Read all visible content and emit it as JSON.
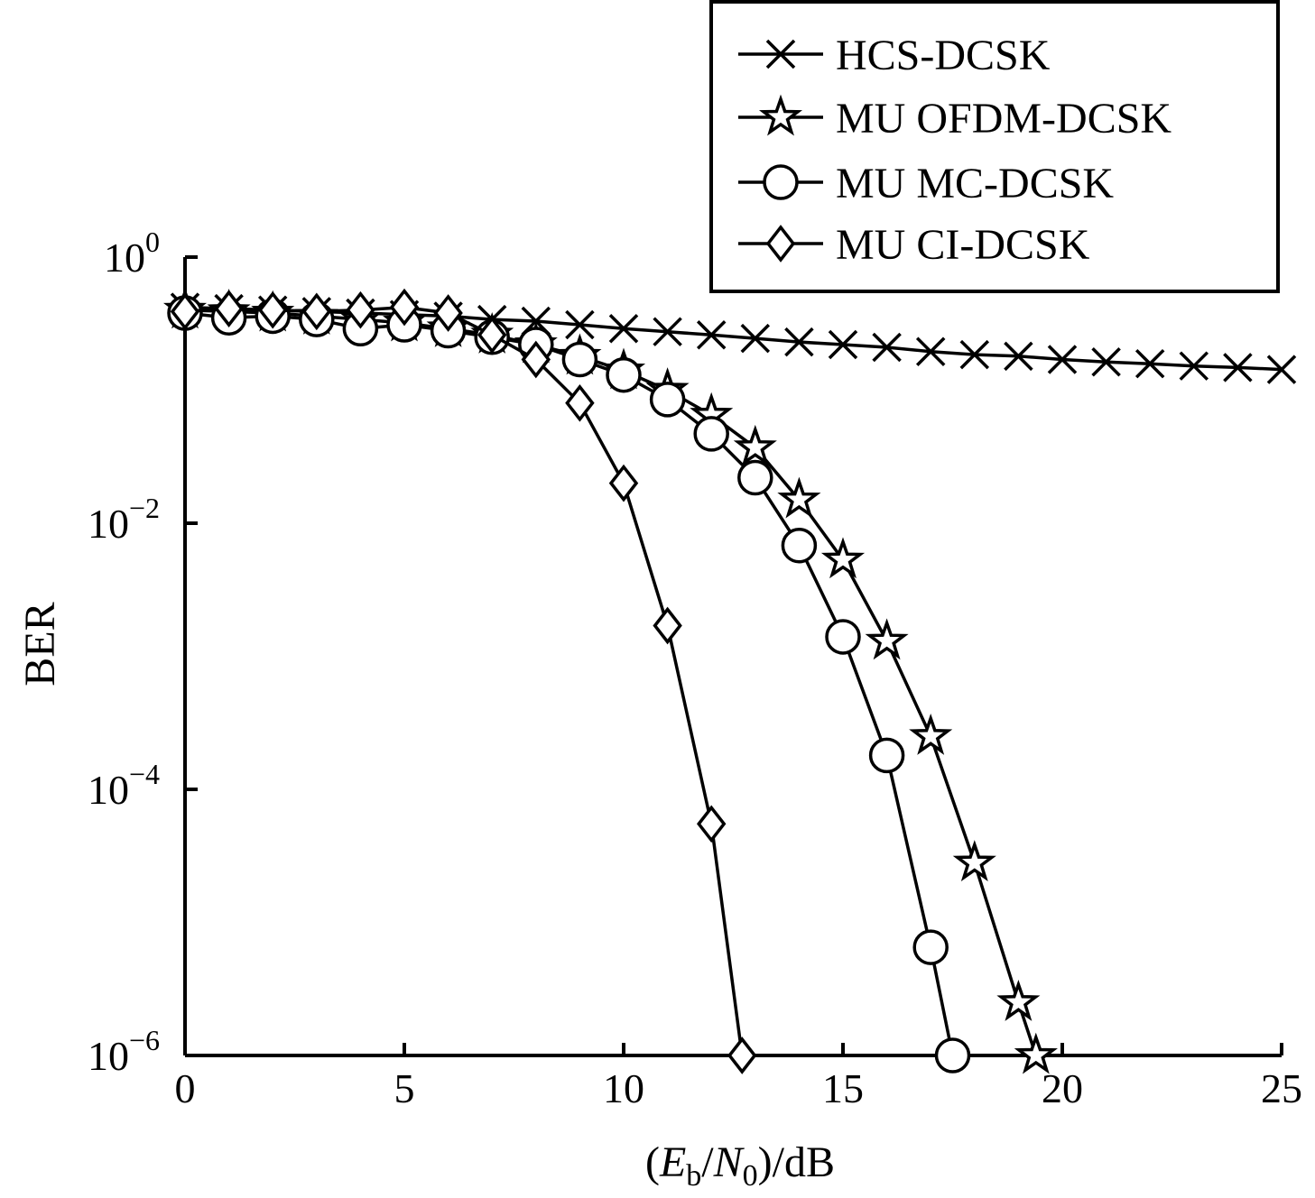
{
  "chart_data": {
    "type": "line",
    "title": "",
    "xlabel": "(Eb/N0)/dB",
    "xlabel_parts": {
      "open": "(",
      "e": "E",
      "e_sub": "b",
      "slash": "/",
      "n": "N",
      "n_sub": "0",
      "close": ")/dB"
    },
    "ylabel": "BER",
    "xlim": [
      0,
      25
    ],
    "ylim": [
      1e-06,
      1
    ],
    "yscale": "log",
    "grid": false,
    "legend_position": "top-right",
    "x_ticks": [
      {
        "value": 0,
        "label": "0"
      },
      {
        "value": 5,
        "label": "5"
      },
      {
        "value": 10,
        "label": "10"
      },
      {
        "value": 15,
        "label": "15"
      },
      {
        "value": 20,
        "label": "20"
      },
      {
        "value": 25,
        "label": "25"
      }
    ],
    "y_ticks": [
      {
        "value": 1,
        "base": "10",
        "exp": "0"
      },
      {
        "value": 0.01,
        "base": "10",
        "exp": "−2"
      },
      {
        "value": 0.0001,
        "base": "10",
        "exp": "−4"
      },
      {
        "value": 1e-06,
        "base": "10",
        "exp": "−6"
      }
    ],
    "series": [
      {
        "name": "HCS-DCSK",
        "marker": "x",
        "x": [
          0,
          1,
          2,
          3,
          4,
          5,
          6,
          7,
          8,
          9,
          10,
          11,
          12,
          13,
          14,
          15,
          16,
          17,
          18,
          19,
          20,
          21,
          22,
          23,
          24,
          25
        ],
        "y": [
          0.42,
          0.41,
          0.4,
          0.39,
          0.38,
          0.37,
          0.36,
          0.34,
          0.33,
          0.31,
          0.29,
          0.275,
          0.26,
          0.245,
          0.23,
          0.22,
          0.21,
          0.195,
          0.185,
          0.18,
          0.17,
          0.163,
          0.158,
          0.152,
          0.148,
          0.143
        ]
      },
      {
        "name": "MU OFDM-DCSK",
        "marker": "star",
        "x": [
          0,
          1,
          2,
          3,
          4,
          5,
          6,
          7,
          8,
          9,
          10,
          11,
          12,
          13,
          14,
          15,
          16,
          17,
          18,
          19,
          19.4
        ],
        "y": [
          0.4,
          0.39,
          0.38,
          0.36,
          0.34,
          0.32,
          0.29,
          0.26,
          0.22,
          0.18,
          0.14,
          0.1,
          0.065,
          0.037,
          0.015,
          0.0053,
          0.0013,
          0.00025,
          2.8e-05,
          2.5e-06,
          1e-06
        ]
      },
      {
        "name": "MU MC-DCSK",
        "marker": "circle",
        "x": [
          0,
          1,
          2,
          3,
          4,
          5,
          6,
          7,
          8,
          9,
          10,
          11,
          12,
          13,
          14,
          15,
          16,
          17,
          17.5
        ],
        "y": [
          0.38,
          0.35,
          0.36,
          0.34,
          0.29,
          0.31,
          0.28,
          0.25,
          0.22,
          0.17,
          0.13,
          0.085,
          0.047,
          0.022,
          0.0068,
          0.0014,
          0.00018,
          6.5e-06,
          1e-06
        ]
      },
      {
        "name": "MU CI-DCSK",
        "marker": "diamond",
        "x": [
          0,
          1,
          2,
          3,
          4,
          5,
          6,
          7,
          8,
          9,
          10,
          11,
          12,
          12.7
        ],
        "y": [
          0.39,
          0.41,
          0.4,
          0.39,
          0.4,
          0.42,
          0.38,
          0.26,
          0.17,
          0.08,
          0.02,
          0.0017,
          5.5e-05,
          1e-06
        ]
      }
    ]
  }
}
